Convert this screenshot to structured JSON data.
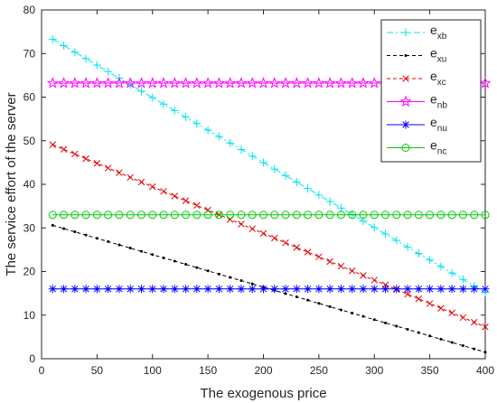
{
  "chart_data": {
    "type": "line",
    "xlabel": "The exogenous price",
    "ylabel": "The service effort of the server",
    "xlim": [
      0,
      400
    ],
    "ylim": [
      0,
      80
    ],
    "x_ticks": [
      0,
      50,
      100,
      150,
      200,
      250,
      300,
      350,
      400
    ],
    "y_ticks": [
      0,
      10,
      20,
      30,
      40,
      50,
      60,
      70,
      80
    ],
    "grid": false,
    "legend_position": "top-right",
    "x": [
      10,
      20,
      30,
      40,
      50,
      60,
      70,
      80,
      90,
      100,
      110,
      120,
      130,
      140,
      150,
      160,
      170,
      180,
      190,
      200,
      210,
      220,
      230,
      240,
      250,
      260,
      270,
      280,
      290,
      300,
      310,
      320,
      330,
      340,
      350,
      360,
      370,
      380,
      390,
      400
    ],
    "series": [
      {
        "name": "e",
        "sub": "xb",
        "color": "#00e5ee",
        "line": "dashdot",
        "marker": "plus",
        "from": [
          10,
          73.3
        ],
        "to": [
          400,
          15.2
        ],
        "count": 40
      },
      {
        "name": "e",
        "sub": "xu",
        "color": "#000000",
        "line": "dashed",
        "marker": "dot",
        "from": [
          10,
          30.6
        ],
        "to": [
          400,
          1.5
        ],
        "count": 40
      },
      {
        "name": "e",
        "sub": "xc",
        "color": "#e00000",
        "line": "dashed",
        "marker": "x",
        "from": [
          10,
          49.1
        ],
        "to": [
          400,
          7.3
        ],
        "count": 40
      },
      {
        "name": "e",
        "sub": "nb",
        "color": "#ff00ff",
        "line": "solid",
        "marker": "star",
        "from": [
          10,
          63.2
        ],
        "to": [
          400,
          63.2
        ],
        "count": 40
      },
      {
        "name": "e",
        "sub": "nu",
        "color": "#0000ff",
        "line": "solid",
        "marker": "asterisk",
        "from": [
          10,
          16.0
        ],
        "to": [
          400,
          16.0
        ],
        "count": 40
      },
      {
        "name": "e",
        "sub": "nc",
        "color": "#00cc00",
        "line": "solid",
        "marker": "circle",
        "from": [
          10,
          33.0
        ],
        "to": [
          400,
          33.0
        ],
        "count": 40
      }
    ]
  }
}
